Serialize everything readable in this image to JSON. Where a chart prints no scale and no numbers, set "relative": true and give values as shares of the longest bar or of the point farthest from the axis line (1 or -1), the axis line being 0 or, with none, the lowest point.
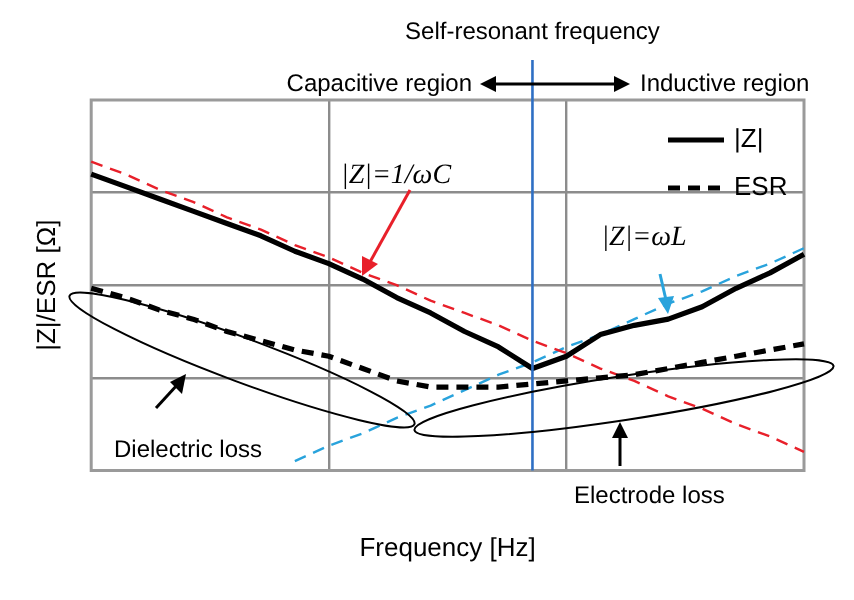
{
  "chart_data": {
    "type": "line",
    "relative": true,
    "xlabel": "Frequency [Hz]",
    "ylabel": "|Z|/ESR [Ω]",
    "categories": [
      null,
      null,
      null,
      null,
      null,
      null,
      null,
      null,
      null,
      null,
      null,
      null,
      null,
      null,
      null,
      null,
      null,
      null,
      null,
      null,
      null,
      null
    ],
    "series": [
      {
        "name": "|Z|",
        "color": "#000000",
        "values": [
          0.96,
          0.92,
          0.88,
          0.84,
          0.8,
          0.76,
          0.71,
          0.67,
          0.62,
          0.56,
          0.51,
          0.45,
          0.4,
          0.33,
          0.37,
          0.44,
          0.47,
          0.49,
          0.53,
          0.59,
          0.64,
          0.7
        ]
      },
      {
        "name": "ESR",
        "color": "#000000",
        "line_style": "dashed",
        "values": [
          0.59,
          0.56,
          0.52,
          0.49,
          0.45,
          0.42,
          0.39,
          0.37,
          0.33,
          0.29,
          0.27,
          0.27,
          0.27,
          0.28,
          0.29,
          0.3,
          0.31,
          0.33,
          0.35,
          0.37,
          0.39,
          0.41
        ]
      },
      {
        "color": "#e8202a",
        "line_style": "dashed",
        "values": [
          1,
          0.96,
          0.91,
          0.87,
          0.82,
          0.78,
          0.73,
          0.69,
          0.64,
          0.6,
          0.55,
          0.51,
          0.47,
          0.42,
          0.38,
          0.33,
          0.29,
          0.24,
          0.2,
          0.15,
          0.11,
          0.06
        ]
      },
      {
        "color": "#29a3dc",
        "line_style": "dashed",
        "values": [
          null,
          null,
          null,
          null,
          null,
          null,
          0.03,
          0.08,
          0.12,
          0.17,
          0.21,
          0.26,
          0.31,
          0.35,
          0.4,
          0.44,
          0.49,
          0.54,
          0.58,
          0.63,
          0.67,
          0.72
        ]
      }
    ],
    "ref_lines": [
      {
        "axis": "x",
        "label": "Self-resonant frequency",
        "color": "#2e6fc4"
      }
    ],
    "annotations": [
      "Capacitive region",
      "Inductive region",
      "|Z|=1/ωC",
      "|Z|=ωL",
      "Dielectric loss",
      "Electrode loss"
    ],
    "grid": true,
    "legend": "top right",
    "marker": "none"
  }
}
